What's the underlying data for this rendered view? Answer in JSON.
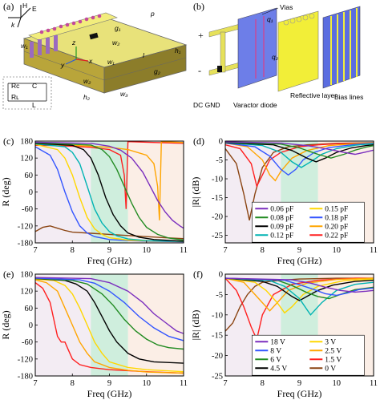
{
  "panels": {
    "a": {
      "label": "(a)",
      "field_h": "H",
      "field_e": "E",
      "field_k": "k",
      "dims": [
        "p",
        "g₁",
        "l",
        "w₂",
        "w₁",
        "h₁",
        "g₂",
        "w₂",
        "h₂",
        "w₃",
        "w₁"
      ],
      "axes": [
        "z",
        "y",
        "x"
      ],
      "circuit": {
        "rc": "Rᴄ",
        "c": "C",
        "rl": "Rʟ",
        "l": "L"
      }
    },
    "b": {
      "label": "(b)",
      "annotations": {
        "vias": "Vias",
        "q1": "q₁",
        "q2": "q₂",
        "plus": "+",
        "minus": "-",
        "dc_gnd": "DC GND",
        "varactor": "Varactor diode",
        "reflective": "Reflective layer",
        "bias": "Bias lines"
      }
    },
    "c": {
      "label": "(c)"
    },
    "d": {
      "label": "(d)"
    },
    "e": {
      "label": "(e)"
    },
    "f": {
      "label": "(f)"
    }
  },
  "chart_data": [
    {
      "id": "c",
      "type": "line",
      "xlabel": "Freq (GHz)",
      "ylabel": "R (deg)",
      "xlim": [
        7,
        11
      ],
      "ylim": [
        -180,
        180
      ],
      "xticks": [
        7,
        8,
        9,
        10,
        11
      ],
      "yticks": [
        180,
        120,
        60,
        0,
        -60,
        -120,
        -180
      ],
      "shaded": [
        8.5,
        9.5
      ],
      "series": [
        {
          "color": "#8b4513",
          "x": [
            7,
            7.2,
            7.4,
            7.6,
            7.8,
            8.0,
            8.5,
            9.0,
            9.5,
            10,
            10.5,
            11
          ],
          "y": [
            -140,
            -125,
            -120,
            -128,
            -136,
            -142,
            -146,
            -150,
            -154,
            -158,
            -162,
            -165
          ]
        },
        {
          "color": "#ff2020",
          "x": [
            7,
            7.5,
            8.0,
            8.5,
            9.0,
            9.3,
            9.4,
            9.45,
            9.5,
            10,
            11
          ],
          "y": [
            165,
            164,
            162,
            158,
            150,
            130,
            60,
            -60,
            178,
            176,
            172
          ]
        },
        {
          "color": "#ffa500",
          "x": [
            7,
            7.5,
            8.0,
            8.5,
            9.0,
            9.5,
            10.0,
            10.2,
            10.3,
            10.35,
            10.4,
            11
          ],
          "y": [
            168,
            167,
            165,
            162,
            158,
            150,
            130,
            100,
            20,
            -100,
            178,
            175
          ]
        },
        {
          "color": "#3355ff",
          "x": [
            7,
            7.4,
            7.6,
            7.8,
            8.0,
            8.2,
            8.4,
            8.6,
            9.0,
            9.5,
            10,
            11
          ],
          "y": [
            160,
            130,
            80,
            0,
            -70,
            -120,
            -145,
            -158,
            -168,
            -172,
            -174,
            -176
          ]
        },
        {
          "color": "#ffd700",
          "x": [
            7,
            7.6,
            7.8,
            8.0,
            8.2,
            8.4,
            8.6,
            8.8,
            9.0,
            9.5,
            10,
            11
          ],
          "y": [
            168,
            150,
            120,
            60,
            -20,
            -90,
            -130,
            -150,
            -162,
            -170,
            -173,
            -175
          ]
        },
        {
          "color": "#00b3b3",
          "x": [
            7,
            7.8,
            8.0,
            8.2,
            8.4,
            8.6,
            8.8,
            9.0,
            9.2,
            9.5,
            10,
            11
          ],
          "y": [
            170,
            160,
            140,
            100,
            20,
            -60,
            -110,
            -140,
            -155,
            -166,
            -172,
            -175
          ]
        },
        {
          "color": "#000000",
          "x": [
            7,
            8.0,
            8.3,
            8.5,
            8.7,
            8.9,
            9.1,
            9.3,
            9.5,
            9.8,
            10.2,
            11
          ],
          "y": [
            172,
            165,
            150,
            120,
            60,
            -20,
            -80,
            -120,
            -145,
            -160,
            -168,
            -174
          ]
        },
        {
          "color": "#228b22",
          "x": [
            7,
            8.5,
            8.8,
            9.0,
            9.2,
            9.4,
            9.6,
            9.8,
            10.0,
            10.3,
            10.6,
            11
          ],
          "y": [
            174,
            166,
            150,
            125,
            80,
            20,
            -40,
            -90,
            -125,
            -150,
            -163,
            -170
          ]
        },
        {
          "color": "#7b2fbe",
          "x": [
            7,
            8.5,
            9.0,
            9.3,
            9.6,
            9.9,
            10.1,
            10.3,
            10.5,
            10.7,
            10.9,
            11
          ],
          "y": [
            176,
            172,
            162,
            148,
            120,
            70,
            20,
            -30,
            -70,
            -100,
            -120,
            -128
          ]
        }
      ]
    },
    {
      "id": "d",
      "type": "line",
      "xlabel": "Freq (GHz)",
      "ylabel": "|R| (dB)",
      "xlim": [
        7,
        11
      ],
      "ylim": [
        -27,
        0
      ],
      "xticks": [
        7,
        8,
        9,
        10,
        11
      ],
      "yticks": [
        0,
        -5,
        -10,
        -15,
        -20,
        -25
      ],
      "shaded": [
        8.5,
        9.5
      ],
      "legend": [
        {
          "label": "0.06 pF",
          "color": "#7b2fbe"
        },
        {
          "label": "0.08 pF",
          "color": "#228b22"
        },
        {
          "label": "0.09 pF",
          "color": "#000000"
        },
        {
          "label": "0.12 pF",
          "color": "#00b3b3"
        },
        {
          "label": "0.15 pF",
          "color": "#ffd700"
        },
        {
          "label": "0.18 pF",
          "color": "#3355ff"
        },
        {
          "label": "0.20 pF",
          "color": "#ffa500"
        },
        {
          "label": "0.22 pF",
          "color": "#ff2020"
        }
      ],
      "series": [
        {
          "color": "#8b4513",
          "x": [
            7,
            7.3,
            7.5,
            7.65,
            7.8,
            8.0,
            8.3,
            8.7,
            9.2,
            10,
            11
          ],
          "y": [
            -2,
            -6,
            -14,
            -21,
            -14,
            -7,
            -3,
            -1.5,
            -1,
            -0.6,
            -0.4
          ]
        },
        {
          "color": "#ff2020",
          "x": [
            7,
            7.4,
            7.7,
            7.85,
            8.0,
            8.2,
            8.5,
            9.0,
            9.5,
            10,
            11
          ],
          "y": [
            -1,
            -2,
            -6,
            -12,
            -9,
            -5,
            -3,
            -1.5,
            -1,
            -0.7,
            -0.5
          ]
        },
        {
          "color": "#ffa500",
          "x": [
            7,
            7.6,
            8.0,
            8.2,
            8.35,
            8.5,
            8.8,
            9.2,
            9.8,
            10.5,
            11
          ],
          "y": [
            -0.5,
            -1.5,
            -5,
            -9,
            -10.5,
            -8,
            -4.5,
            -2.5,
            -1.2,
            -0.7,
            -0.5
          ]
        },
        {
          "color": "#3355ff",
          "x": [
            7,
            7.8,
            8.2,
            8.5,
            8.7,
            8.9,
            9.1,
            9.4,
            9.8,
            10.5,
            11
          ],
          "y": [
            -0.5,
            -1.5,
            -4,
            -7.5,
            -9,
            -7.5,
            -5,
            -3,
            -1.7,
            -0.9,
            -0.6
          ]
        },
        {
          "color": "#00b3b3",
          "x": [
            7,
            8.0,
            8.5,
            8.8,
            9.05,
            9.3,
            9.6,
            10.0,
            10.5,
            11
          ],
          "y": [
            -0.4,
            -1.2,
            -3,
            -5.5,
            -7,
            -5.5,
            -3.5,
            -2,
            -1.1,
            -0.7
          ]
        },
        {
          "color": "#000000",
          "x": [
            7,
            8.3,
            8.8,
            9.2,
            9.45,
            9.7,
            10.0,
            10.4,
            10.8,
            11
          ],
          "y": [
            -0.4,
            -1,
            -2.5,
            -4.5,
            -5.5,
            -4.5,
            -3,
            -1.8,
            -1.2,
            -1
          ]
        },
        {
          "color": "#228b22",
          "x": [
            7,
            8.5,
            9.0,
            9.5,
            9.85,
            10.2,
            10.5,
            10.8,
            11
          ],
          "y": [
            -0.3,
            -0.8,
            -1.8,
            -3.5,
            -4.5,
            -3.5,
            -2.4,
            -1.6,
            -1.2
          ]
        },
        {
          "color": "#7b2fbe",
          "x": [
            7,
            8.5,
            9.2,
            9.8,
            10.2,
            10.5,
            10.75,
            11
          ],
          "y": [
            -0.2,
            -0.5,
            -1.2,
            -2.2,
            -3,
            -3.5,
            -3,
            -2.4
          ]
        }
      ]
    },
    {
      "id": "e",
      "type": "line",
      "xlabel": "Freq (GHz)",
      "ylabel": "R (deg)",
      "xlim": [
        7,
        11
      ],
      "ylim": [
        -180,
        180
      ],
      "xticks": [
        7,
        8,
        9,
        10,
        11
      ],
      "yticks": [
        180,
        120,
        60,
        0,
        -60,
        -120,
        -180
      ],
      "shaded": [
        8.5,
        9.5
      ],
      "series": [
        {
          "color": "#ff2020",
          "x": [
            7,
            7.2,
            7.4,
            7.5,
            7.6,
            7.7,
            7.8,
            7.9,
            8.0,
            8.2,
            8.5,
            9,
            10,
            11
          ],
          "y": [
            150,
            130,
            80,
            20,
            -40,
            -60,
            -60,
            -90,
            -120,
            -140,
            -150,
            -158,
            -165,
            -170
          ]
        },
        {
          "color": "#ffa500",
          "x": [
            7,
            7.3,
            7.6,
            7.8,
            8.0,
            8.2,
            8.4,
            8.6,
            9.0,
            9.5,
            10,
            11
          ],
          "y": [
            160,
            150,
            120,
            60,
            0,
            -60,
            -100,
            -130,
            -150,
            -160,
            -166,
            -170
          ]
        },
        {
          "color": "#ffd700",
          "x": [
            7,
            7.5,
            7.8,
            8.0,
            8.2,
            8.4,
            8.6,
            8.8,
            9.0,
            9.5,
            10,
            11
          ],
          "y": [
            162,
            158,
            140,
            110,
            60,
            0,
            -60,
            -100,
            -130,
            -150,
            -158,
            -165
          ]
        },
        {
          "color": "#000000",
          "x": [
            7,
            7.8,
            8.1,
            8.4,
            8.6,
            8.8,
            9.0,
            9.2,
            9.5,
            9.8,
            10.2,
            11
          ],
          "y": [
            164,
            158,
            145,
            120,
            80,
            30,
            -20,
            -60,
            -100,
            -120,
            -130,
            -135
          ]
        },
        {
          "color": "#228b22",
          "x": [
            7,
            8.0,
            8.4,
            8.8,
            9.1,
            9.4,
            9.7,
            10.0,
            10.3,
            10.6,
            11
          ],
          "y": [
            165,
            158,
            145,
            110,
            70,
            20,
            -20,
            -50,
            -70,
            -80,
            -85
          ]
        },
        {
          "color": "#3355ff",
          "x": [
            7,
            8.2,
            8.6,
            9.0,
            9.4,
            9.8,
            10.2,
            10.6,
            11
          ],
          "y": [
            166,
            160,
            148,
            120,
            80,
            30,
            -10,
            -40,
            -55
          ]
        },
        {
          "color": "#7b2fbe",
          "x": [
            7,
            8.5,
            9.0,
            9.5,
            9.9,
            10.2,
            10.5,
            10.8,
            11
          ],
          "y": [
            168,
            164,
            150,
            120,
            80,
            40,
            10,
            -20,
            -30
          ]
        }
      ]
    },
    {
      "id": "f",
      "type": "line",
      "xlabel": "Freq (GHz)",
      "ylabel": "|R| (dB)",
      "xlim": [
        7,
        11
      ],
      "ylim": [
        -25,
        0
      ],
      "xticks": [
        7,
        8,
        9,
        10,
        11
      ],
      "yticks": [
        0,
        -5,
        -10,
        -15,
        -20,
        -25
      ],
      "shaded": [
        8.5,
        9.5
      ],
      "legend": [
        {
          "label": "18 V",
          "color": "#7b2fbe"
        },
        {
          "label": "8 V",
          "color": "#3355ff"
        },
        {
          "label": "6 V",
          "color": "#228b22"
        },
        {
          "label": "4.5 V",
          "color": "#000000"
        },
        {
          "label": "3 V",
          "color": "#ffd700"
        },
        {
          "label": "2.5 V",
          "color": "#ffa500"
        },
        {
          "label": "1.5 V",
          "color": "#ff2020"
        },
        {
          "label": "0 V",
          "color": "#8b4513"
        }
      ],
      "series": [
        {
          "color": "#8b4513",
          "x": [
            7,
            7.2,
            7.4,
            7.6,
            7.8,
            8.0,
            8.5,
            9,
            10,
            11
          ],
          "y": [
            -14,
            -12,
            -8,
            -5,
            -3,
            -2,
            -1.5,
            -1.2,
            -1,
            -1
          ]
        },
        {
          "color": "#ff2020",
          "x": [
            7,
            7.3,
            7.5,
            7.7,
            7.85,
            8.0,
            8.3,
            8.8,
            9.5,
            10.5,
            11
          ],
          "y": [
            -1,
            -4,
            -8,
            -13,
            -16,
            -10,
            -5,
            -2.5,
            -1.5,
            -1,
            -1
          ]
        },
        {
          "color": "#ffa500",
          "x": [
            7,
            7.5,
            7.8,
            8.0,
            8.2,
            8.4,
            8.7,
            9.2,
            10,
            11
          ],
          "y": [
            -1,
            -2,
            -5,
            -7,
            -9,
            -7,
            -4,
            -2.2,
            -1.3,
            -1
          ]
        },
        {
          "color": "#ffd700",
          "x": [
            7,
            7.8,
            8.1,
            8.4,
            8.6,
            8.8,
            9.1,
            9.5,
            10.2,
            11
          ],
          "y": [
            -1,
            -2,
            -4,
            -7,
            -9.5,
            -8,
            -5,
            -3,
            -1.6,
            -1.2
          ]
        },
        {
          "color": "#000000",
          "x": [
            7,
            8.0,
            8.4,
            8.8,
            9.0,
            9.2,
            9.5,
            9.9,
            10.5,
            11
          ],
          "y": [
            -1,
            -1.8,
            -3,
            -5.5,
            -6.5,
            -5.5,
            -4,
            -2.7,
            -1.8,
            -1.5
          ]
        },
        {
          "color": "#00b3b3",
          "x": [
            7,
            8.2,
            8.6,
            9.0,
            9.3,
            9.6,
            10.0,
            10.5,
            11
          ],
          "y": [
            -1,
            -1.6,
            -3,
            -6,
            -10,
            -7,
            -4,
            -2.5,
            -2
          ]
        },
        {
          "color": "#228b22",
          "x": [
            7,
            8.4,
            8.8,
            9.2,
            9.5,
            9.8,
            10.1,
            10.5,
            11
          ],
          "y": [
            -1,
            -1.5,
            -2.8,
            -4.5,
            -5.5,
            -6,
            -5,
            -3.8,
            -3.2
          ]
        },
        {
          "color": "#3355ff",
          "x": [
            7,
            8.6,
            9.0,
            9.4,
            9.7,
            10.0,
            10.3,
            10.6,
            11
          ],
          "y": [
            -1,
            -1.5,
            -2.6,
            -3.8,
            -4.8,
            -5.2,
            -4.6,
            -3.8,
            -3.4
          ]
        },
        {
          "color": "#7b2fbe",
          "x": [
            7,
            8.8,
            9.3,
            9.7,
            10.1,
            10.5,
            10.8,
            11
          ],
          "y": [
            -1,
            -1.4,
            -2.2,
            -3.2,
            -4,
            -4.4,
            -4.2,
            -4
          ]
        }
      ]
    }
  ]
}
